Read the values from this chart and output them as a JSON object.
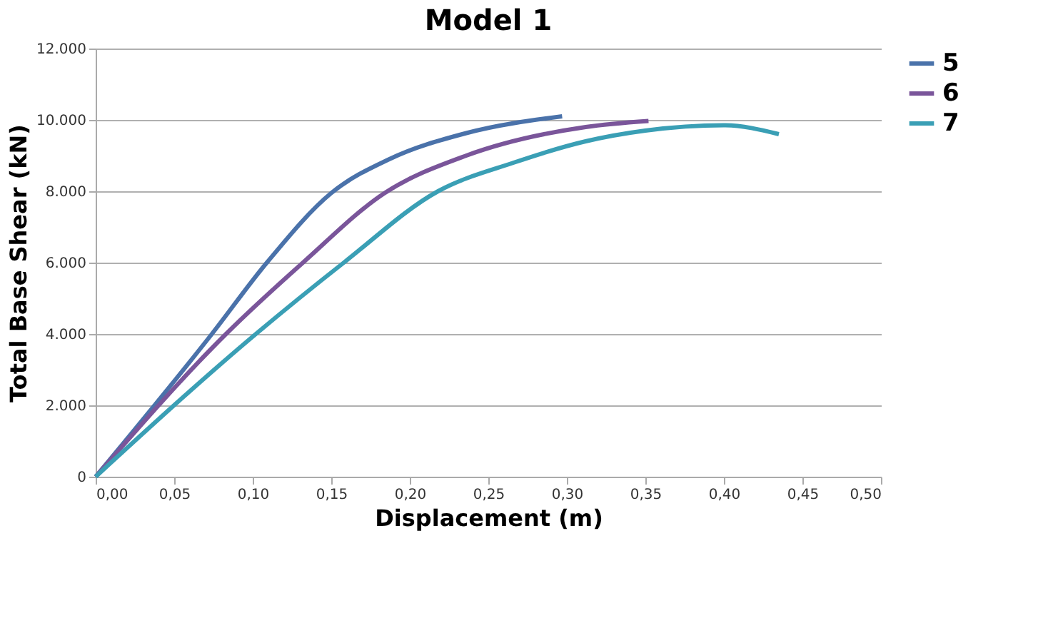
{
  "chart_data": {
    "type": "line",
    "title": "Model 1",
    "xlabel": "Displacement (m)",
    "ylabel": "Total Base Shear (kN)",
    "xlim": [
      0,
      0.5
    ],
    "xticks": [
      {
        "value": 0,
        "label": "0,00"
      },
      {
        "value": 0.05,
        "label": "0,05"
      },
      {
        "value": 0.1,
        "label": "0,10"
      },
      {
        "value": 0.15,
        "label": "0,15"
      },
      {
        "value": 0.2,
        "label": "0,20"
      },
      {
        "value": 0.25,
        "label": "0,25"
      },
      {
        "value": 0.3,
        "label": "0,30"
      },
      {
        "value": 0.35,
        "label": "0,35"
      },
      {
        "value": 0.4,
        "label": "0,40"
      },
      {
        "value": 0.45,
        "label": "0,45"
      },
      {
        "value": 0.5,
        "label": "0,50"
      }
    ],
    "ylim": [
      0,
      12000
    ],
    "yticks": [
      0,
      {
        "value": 2000,
        "label": "2.000"
      },
      {
        "value": 4000,
        "label": "4.000"
      },
      {
        "value": 6000,
        "label": "6.000"
      },
      {
        "value": 8000,
        "label": "8.000"
      },
      {
        "value": 10000,
        "label": "10.000"
      },
      {
        "value": 12000,
        "label": "12.000"
      }
    ],
    "grid": "y",
    "legend": "right",
    "marker": "none",
    "line_style": "solid",
    "series": [
      {
        "name": "5",
        "color": "#4a72aa",
        "x": [
          0,
          0.074,
          0.109,
          0.15,
          0.187,
          0.236,
          0.297
        ],
        "values": [
          0,
          4000,
          6000,
          7950,
          8900,
          9630,
          10100
        ]
      },
      {
        "name": "6",
        "color": "#7a559a",
        "x": [
          0,
          0.083,
          0.132,
          0.184,
          0.236,
          0.312,
          0.352
        ],
        "values": [
          0,
          4000,
          6000,
          7950,
          9000,
          9800,
          9970
        ]
      },
      {
        "name": "7",
        "color": "#3a9fb5",
        "x": [
          0,
          0.102,
          0.158,
          0.218,
          0.266,
          0.312,
          0.35,
          0.4,
          0.435
        ],
        "values": [
          0,
          4000,
          6000,
          8000,
          8800,
          9400,
          9700,
          9850,
          9600
        ]
      }
    ]
  }
}
